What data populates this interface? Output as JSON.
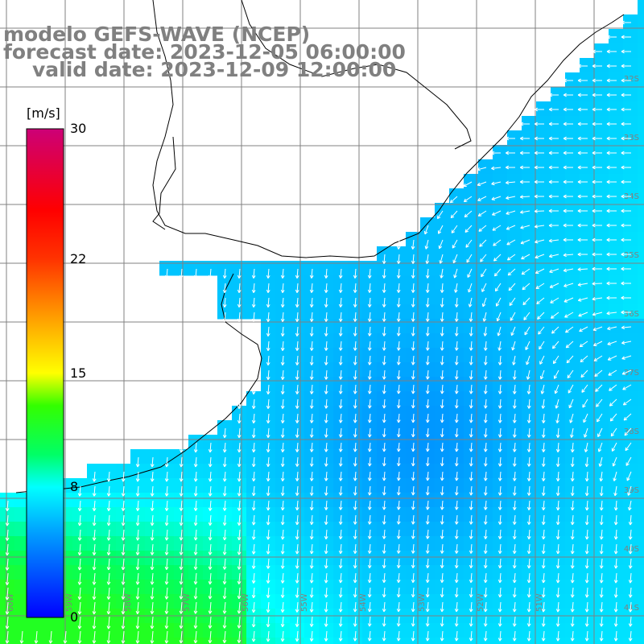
{
  "title": {
    "model": "modelo GEFS-WAVE (NCEP)",
    "forecast": "forecast date: 2023-12-05 06:00:00",
    "valid": "valid date: 2023-12-09 12:00:00"
  },
  "colorbar": {
    "unit": "[m/s]",
    "ticks": [
      {
        "value": 30,
        "label": "30"
      },
      {
        "value": 22,
        "label": "22"
      },
      {
        "value": 15,
        "label": "15"
      },
      {
        "value": 8,
        "label": "8"
      },
      {
        "value": 0,
        "label": "0"
      }
    ],
    "range": [
      0,
      30
    ],
    "color_stops": [
      {
        "value": 0,
        "color": "#0000ff"
      },
      {
        "value": 5,
        "color": "#0099ff"
      },
      {
        "value": 8,
        "color": "#00ffff"
      },
      {
        "value": 10,
        "color": "#00ff66"
      },
      {
        "value": 13,
        "color": "#33ff00"
      },
      {
        "value": 15,
        "color": "#ffff00"
      },
      {
        "value": 18,
        "color": "#ffaa00"
      },
      {
        "value": 22,
        "color": "#ff3300"
      },
      {
        "value": 25,
        "color": "#ff0000"
      },
      {
        "value": 30,
        "color": "#cc0077"
      }
    ]
  },
  "map": {
    "variable": "wind speed and direction",
    "grid_lines": true,
    "latitude_labels": [
      "32S",
      "33S",
      "34S",
      "35S",
      "36S",
      "37S",
      "38S",
      "39S",
      "40S",
      "41S"
    ],
    "longitude_labels": [
      "60W",
      "59W",
      "58W",
      "57W",
      "56W",
      "55W",
      "54W",
      "53W",
      "52W",
      "51W"
    ],
    "colors": {
      "land": "#ffffff",
      "coastline": "#000000",
      "grid": "#808080",
      "arrows": "#ffffff",
      "title": "#808080"
    }
  }
}
